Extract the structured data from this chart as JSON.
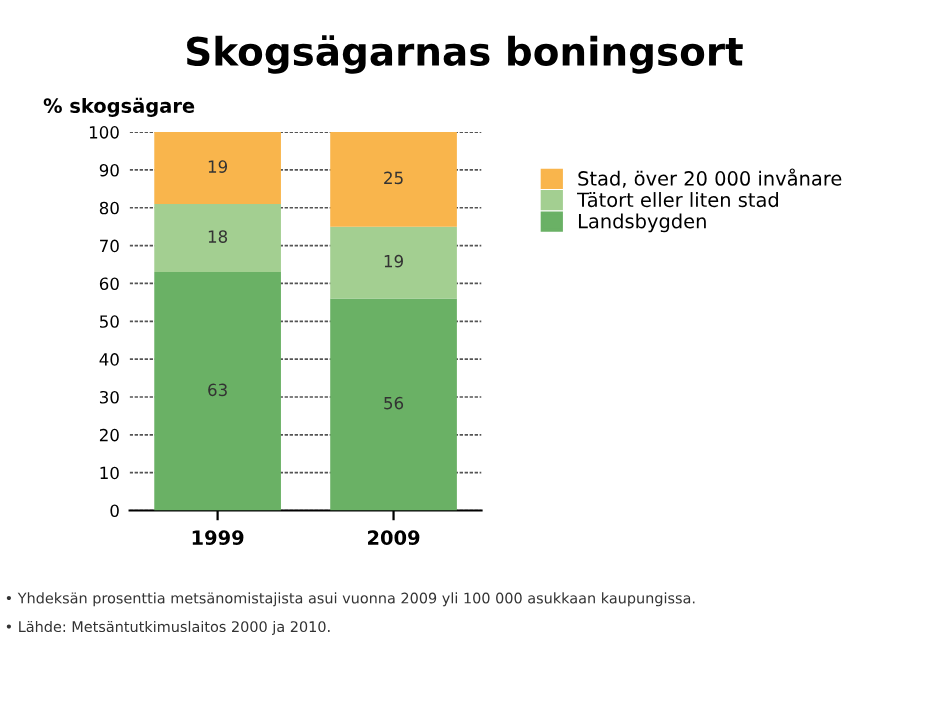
{
  "chart_data": {
    "type": "bar",
    "title": "Skogsägarnas boningsort",
    "ylabel": "% skogsägare",
    "categories": [
      "1999",
      "2009"
    ],
    "stacked": true,
    "series": [
      {
        "name": "Landsbygden",
        "color": "#6ab165",
        "values": [
          63,
          56
        ]
      },
      {
        "name": "Tätort eller liten stad",
        "color": "#a3cf91",
        "values": [
          18,
          19
        ]
      },
      {
        "name": "Stad, över 20 000 invånare",
        "color": "#f9b54c",
        "values": [
          19,
          25
        ]
      }
    ],
    "data_labels": true,
    "ylim": [
      0,
      100
    ],
    "yticks": [
      0,
      10,
      20,
      30,
      40,
      50,
      60,
      70,
      80,
      90,
      100
    ],
    "grid": "y",
    "legend": "right",
    "annotations": [
      "• Yhdeksän prosenttia metsänomistajista asui vuonna 2009 yli 100 000 asukkaan kaupungissa.",
      "• Lähde: Metsäntutkimuslaitos 2000 ja 2010."
    ]
  }
}
